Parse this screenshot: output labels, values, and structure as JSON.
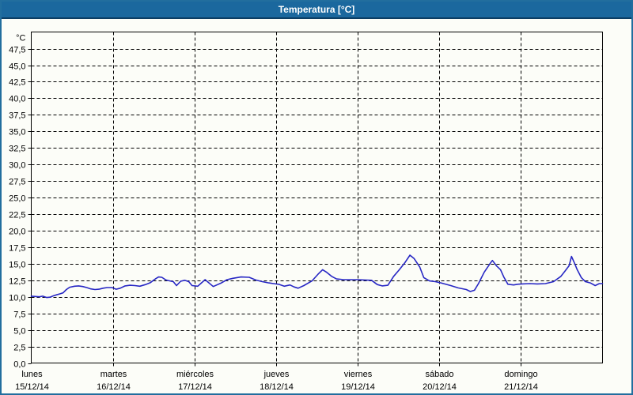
{
  "window": {
    "title": "Temperatura [°C]"
  },
  "colors": {
    "titlebar": "#1B689E",
    "titlebar_underline": "#0B3D63",
    "frame": "#226E9E",
    "background": "#FCFDF8",
    "plot_border": "#000000",
    "grid": "#000000",
    "text": "#000000",
    "title_text": "#FFFFFF",
    "series": "#2727C4"
  },
  "chart_data": {
    "type": "line",
    "title": "Temperatura [°C]",
    "ylabel": "°C",
    "ylim": [
      0,
      50.2
    ],
    "y_tick_step": 2.5,
    "y_tick_values": [
      0,
      2.5,
      5,
      7.5,
      10,
      12.5,
      15,
      17.5,
      20,
      22.5,
      25,
      27.5,
      30,
      32.5,
      35,
      37.5,
      40,
      42.5,
      45,
      47.5
    ],
    "y_tick_labels": [
      "0,0",
      "2,5",
      "5,0",
      "7,5",
      "10,0",
      "12,5",
      "15,0",
      "17,5",
      "20,0",
      "22,5",
      "25,0",
      "27,5",
      "30,0",
      "32,5",
      "35,0",
      "37,5",
      "40,0",
      "42,5",
      "45,0",
      "47,5"
    ],
    "grid": "dashed",
    "legend": "none",
    "x_categories": [
      {
        "day": "lunes",
        "date": "15/12/14"
      },
      {
        "day": "martes",
        "date": "16/12/14"
      },
      {
        "day": "miércoles",
        "date": "17/12/14"
      },
      {
        "day": "jueves",
        "date": "18/12/14"
      },
      {
        "day": "viernes",
        "date": "19/12/14"
      },
      {
        "day": "sábado",
        "date": "20/12/14"
      },
      {
        "day": "domingo",
        "date": "21/12/14"
      }
    ],
    "x_range_days": [
      0,
      7
    ],
    "series": [
      {
        "name": "Temperatura",
        "color": "#2727C4",
        "points": [
          [
            0.0,
            10.1
          ],
          [
            0.05,
            10.05
          ],
          [
            0.1,
            10.0
          ],
          [
            0.14,
            10.1
          ],
          [
            0.19,
            9.9
          ],
          [
            0.23,
            9.95
          ],
          [
            0.27,
            10.15
          ],
          [
            0.31,
            10.3
          ],
          [
            0.35,
            10.45
          ],
          [
            0.39,
            10.6
          ],
          [
            0.43,
            11.1
          ],
          [
            0.47,
            11.45
          ],
          [
            0.53,
            11.6
          ],
          [
            0.58,
            11.65
          ],
          [
            0.63,
            11.55
          ],
          [
            0.68,
            11.4
          ],
          [
            0.73,
            11.2
          ],
          [
            0.78,
            11.1
          ],
          [
            0.83,
            11.15
          ],
          [
            0.88,
            11.3
          ],
          [
            0.93,
            11.4
          ],
          [
            0.99,
            11.4
          ],
          [
            1.04,
            11.15
          ],
          [
            1.09,
            11.3
          ],
          [
            1.15,
            11.65
          ],
          [
            1.21,
            11.75
          ],
          [
            1.27,
            11.7
          ],
          [
            1.33,
            11.6
          ],
          [
            1.4,
            11.85
          ],
          [
            1.46,
            12.15
          ],
          [
            1.52,
            12.7
          ],
          [
            1.56,
            13.0
          ],
          [
            1.6,
            12.95
          ],
          [
            1.65,
            12.55
          ],
          [
            1.7,
            12.4
          ],
          [
            1.74,
            12.3
          ],
          [
            1.78,
            11.7
          ],
          [
            1.83,
            12.35
          ],
          [
            1.88,
            12.5
          ],
          [
            1.93,
            12.3
          ],
          [
            1.97,
            11.7
          ],
          [
            2.04,
            11.6
          ],
          [
            2.13,
            12.6
          ],
          [
            2.23,
            11.55
          ],
          [
            2.33,
            12.1
          ],
          [
            2.4,
            12.6
          ],
          [
            2.47,
            12.8
          ],
          [
            2.57,
            13.0
          ],
          [
            2.67,
            12.95
          ],
          [
            2.75,
            12.55
          ],
          [
            2.83,
            12.3
          ],
          [
            2.91,
            12.1
          ],
          [
            2.97,
            12.0
          ],
          [
            3.03,
            11.9
          ],
          [
            3.1,
            11.6
          ],
          [
            3.17,
            11.8
          ],
          [
            3.22,
            11.5
          ],
          [
            3.27,
            11.3
          ],
          [
            3.34,
            11.7
          ],
          [
            3.44,
            12.4
          ],
          [
            3.52,
            13.5
          ],
          [
            3.57,
            14.1
          ],
          [
            3.62,
            13.7
          ],
          [
            3.68,
            13.1
          ],
          [
            3.74,
            12.7
          ],
          [
            3.83,
            12.6
          ],
          [
            3.93,
            12.6
          ],
          [
            4.0,
            12.6
          ],
          [
            4.08,
            12.55
          ],
          [
            4.17,
            12.5
          ],
          [
            4.24,
            11.85
          ],
          [
            4.3,
            11.65
          ],
          [
            4.37,
            11.75
          ],
          [
            4.44,
            13.1
          ],
          [
            4.51,
            14.1
          ],
          [
            4.58,
            15.2
          ],
          [
            4.64,
            16.3
          ],
          [
            4.69,
            15.8
          ],
          [
            4.76,
            14.5
          ],
          [
            4.81,
            12.9
          ],
          [
            4.88,
            12.4
          ],
          [
            4.95,
            12.3
          ],
          [
            5.02,
            12.1
          ],
          [
            5.14,
            11.7
          ],
          [
            5.23,
            11.35
          ],
          [
            5.33,
            11.1
          ],
          [
            5.38,
            10.8
          ],
          [
            5.43,
            11.0
          ],
          [
            5.48,
            12.0
          ],
          [
            5.55,
            13.7
          ],
          [
            5.62,
            15.0
          ],
          [
            5.65,
            15.5
          ],
          [
            5.7,
            14.7
          ],
          [
            5.75,
            14.1
          ],
          [
            5.79,
            13.0
          ],
          [
            5.84,
            11.9
          ],
          [
            5.91,
            11.8
          ],
          [
            5.96,
            11.9
          ],
          [
            6.01,
            11.95
          ],
          [
            6.11,
            12.0
          ],
          [
            6.2,
            11.95
          ],
          [
            6.3,
            12.0
          ],
          [
            6.4,
            12.3
          ],
          [
            6.49,
            13.1
          ],
          [
            6.54,
            13.9
          ],
          [
            6.59,
            14.7
          ],
          [
            6.62,
            16.1
          ],
          [
            6.66,
            15.0
          ],
          [
            6.69,
            14.1
          ],
          [
            6.74,
            12.9
          ],
          [
            6.79,
            12.3
          ],
          [
            6.85,
            12.1
          ],
          [
            6.91,
            11.7
          ],
          [
            6.96,
            12.0
          ],
          [
            7.0,
            12.0
          ]
        ]
      }
    ]
  }
}
